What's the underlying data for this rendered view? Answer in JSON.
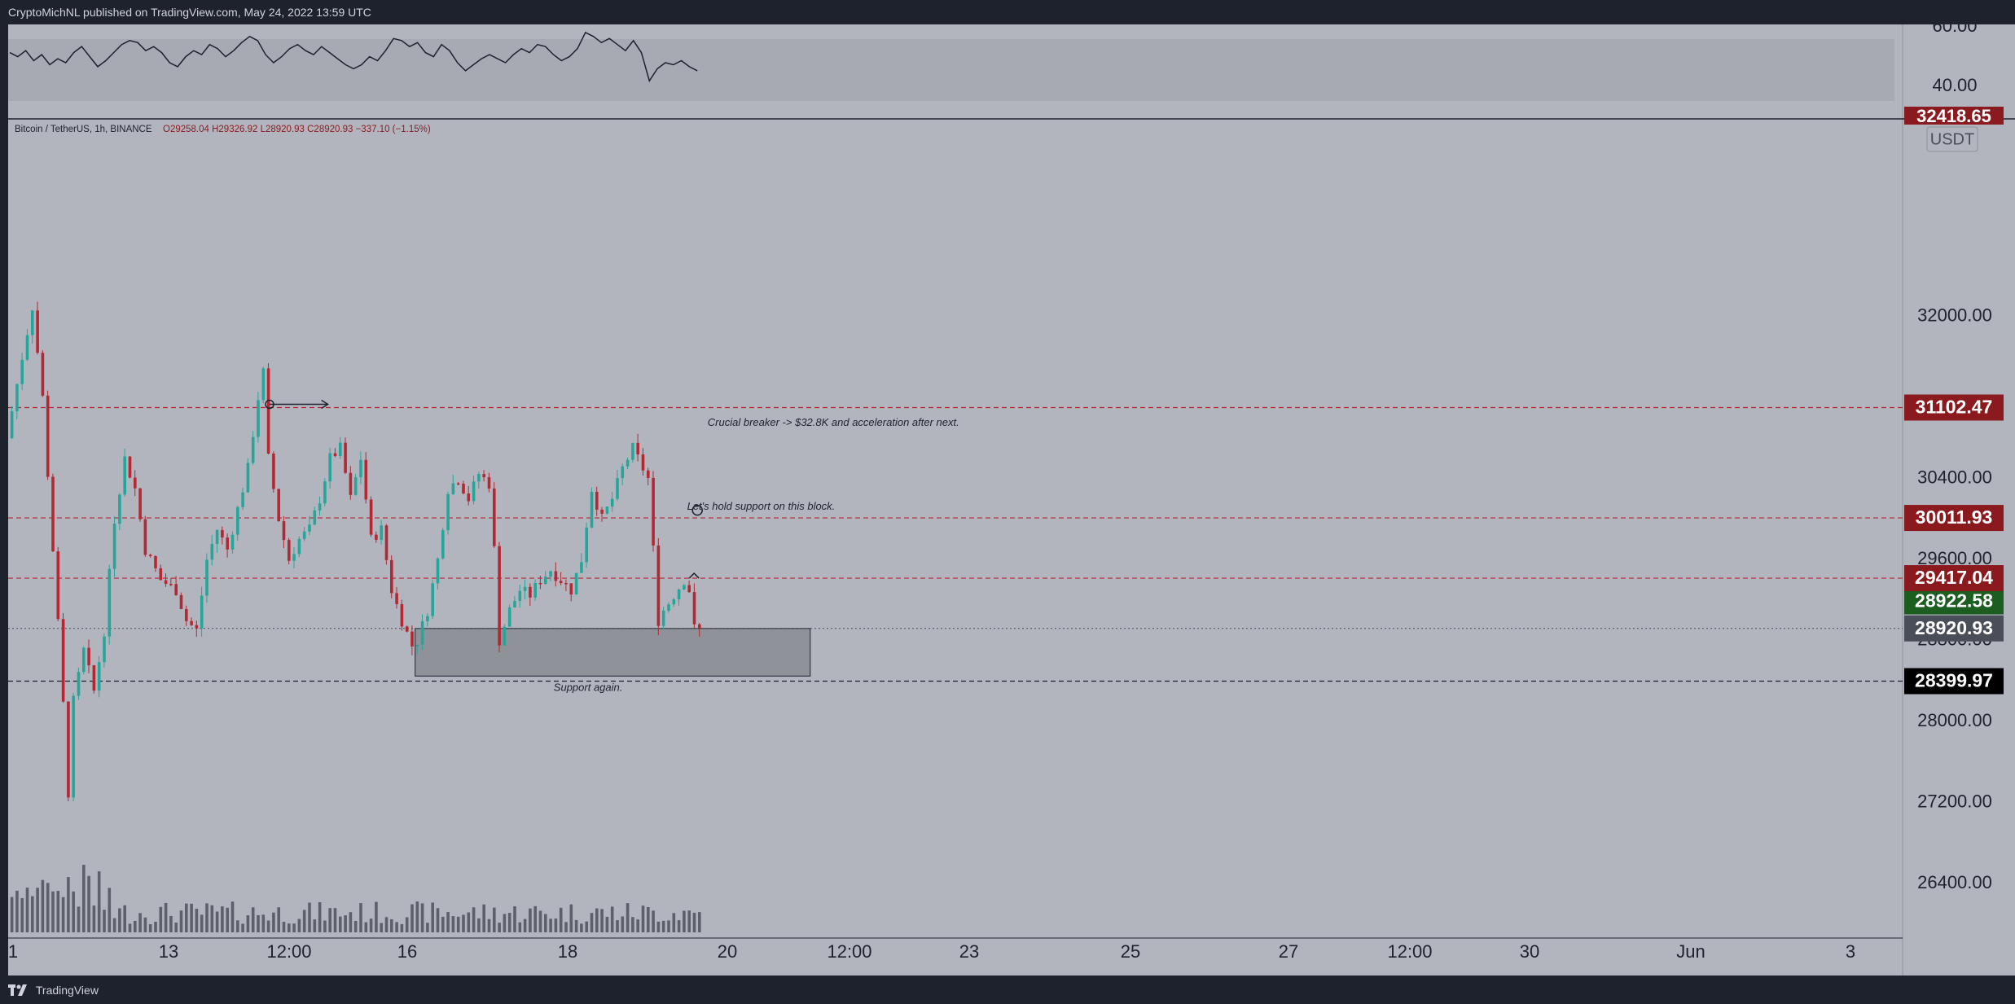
{
  "header": {
    "published_text": "CryptoMichNL published on TradingView.com, May 24, 2022 13:59 UTC"
  },
  "symbol": {
    "name": "Bitcoin / TetherUS, 1h, BINANCE",
    "ohlc": "O29258.04  H29326.92  L28920.93  C28920.93  −337.10 (−1.15%)"
  },
  "footer": {
    "brand": "TradingView"
  },
  "colors": {
    "background": "#b2b5be",
    "pane_bg": "#1e222d",
    "up": "#26a69a",
    "down": "#b22833",
    "line_red": "#b22833",
    "label_red": "#8b1a1f",
    "label_green": "#1b5e20",
    "label_gray": "#4a4e59",
    "label_black": "#000000",
    "zone_fill": "#8f9299",
    "text_dark": "#1e222d"
  },
  "chart_data": {
    "type": "candlestick",
    "symbol": "Bitcoin / TetherUS",
    "interval": "1h",
    "exchange": "BINANCE",
    "currency_label": "USDT",
    "last_ohlc": {
      "open": 29258.04,
      "high": 29326.92,
      "low": 28920.93,
      "close": 28920.93,
      "change": -337.1,
      "change_pct": -1.15
    },
    "x_ticks": [
      "1",
      "13",
      "12:00",
      "16",
      "18",
      "20",
      "12:00",
      "23",
      "25",
      "27",
      "12:00",
      "30",
      "Jun",
      "3"
    ],
    "y_ticks": [
      32000,
      30400,
      29600,
      28800,
      28000,
      27200,
      26400
    ],
    "y_tick_labels": [
      "32000.00",
      "30400.00",
      "29600.00",
      "28800.00",
      "28000.00",
      "27200.00",
      "26400.00"
    ],
    "ylim": [
      26200,
      33600
    ],
    "price_path": [
      [
        0,
        30800
      ],
      [
        3,
        31600
      ],
      [
        5,
        32100
      ],
      [
        7,
        31200
      ],
      [
        9,
        29700
      ],
      [
        10.5,
        28600
      ],
      [
        12,
        27300
      ],
      [
        13,
        28200
      ],
      [
        15,
        28700
      ],
      [
        17,
        28300
      ],
      [
        19,
        28900
      ],
      [
        21,
        30000
      ],
      [
        23,
        30600
      ],
      [
        25,
        30300
      ],
      [
        27,
        29700
      ],
      [
        30,
        29400
      ],
      [
        33,
        29300
      ],
      [
        35,
        29000
      ],
      [
        37,
        28900
      ],
      [
        39,
        29600
      ],
      [
        41,
        29900
      ],
      [
        43,
        29700
      ],
      [
        45,
        30100
      ],
      [
        47,
        30500
      ],
      [
        49,
        31200
      ],
      [
        50,
        31450
      ],
      [
        51,
        30600
      ],
      [
        53,
        30000
      ],
      [
        55,
        29600
      ],
      [
        57,
        29800
      ],
      [
        59,
        29900
      ],
      [
        61,
        30200
      ],
      [
        63,
        30600
      ],
      [
        65,
        30700
      ],
      [
        67,
        30200
      ],
      [
        69,
        30600
      ],
      [
        71,
        29800
      ],
      [
        73,
        29900
      ],
      [
        75,
        29300
      ],
      [
        77,
        29000
      ],
      [
        79,
        28750
      ],
      [
        80,
        28800
      ],
      [
        82,
        29100
      ],
      [
        84,
        29600
      ],
      [
        86,
        30300
      ],
      [
        88,
        30400
      ],
      [
        90,
        30200
      ],
      [
        92,
        30450
      ],
      [
        94,
        30350
      ],
      [
        95,
        29700
      ],
      [
        96,
        28800
      ],
      [
        98,
        29100
      ],
      [
        100,
        29300
      ],
      [
        102,
        29250
      ],
      [
        104,
        29400
      ],
      [
        106,
        29500
      ],
      [
        108,
        29400
      ],
      [
        110,
        29300
      ],
      [
        112,
        29600
      ],
      [
        114,
        30300
      ],
      [
        116,
        30000
      ],
      [
        118,
        30200
      ],
      [
        120,
        30500
      ],
      [
        122,
        30700
      ],
      [
        124,
        30500
      ],
      [
        125,
        30400
      ],
      [
        126,
        29700
      ],
      [
        127,
        29000
      ],
      [
        128,
        29100
      ],
      [
        130,
        29250
      ],
      [
        132,
        29400
      ],
      [
        133,
        29300
      ],
      [
        134,
        28920
      ]
    ],
    "rsi_pane": {
      "tick_labels": [
        "60.00",
        "40.00"
      ],
      "ylim": [
        28,
        66
      ],
      "values": [
        52,
        50,
        53,
        48,
        51,
        46,
        49,
        47,
        52,
        55,
        50,
        45,
        48,
        52,
        56,
        58,
        57,
        53,
        55,
        52,
        47,
        45,
        50,
        53,
        51,
        56,
        54,
        50,
        53,
        57,
        60,
        58,
        51,
        47,
        50,
        54,
        56,
        53,
        51,
        55,
        52,
        49,
        46,
        44,
        46,
        50,
        48,
        53,
        59,
        58,
        55,
        57,
        52,
        50,
        56,
        53,
        47,
        43,
        46,
        49,
        51,
        49,
        47,
        51,
        54,
        52,
        56,
        55,
        51,
        48,
        50,
        54,
        62,
        60,
        57,
        59,
        56,
        53,
        58,
        52,
        38,
        44,
        47,
        46,
        48,
        45,
        43
      ]
    },
    "horizontal_levels": [
      {
        "price": 31102.47,
        "label": "31102.47",
        "style": "red-dashed"
      },
      {
        "price": 30011.93,
        "label": "30011.93",
        "style": "red-dashed"
      },
      {
        "price": 29417.04,
        "label": "29417.04",
        "style": "red-dashed"
      },
      {
        "price": 28399.97,
        "label": "28399.97",
        "style": "black-dashed"
      }
    ],
    "price_labels": [
      {
        "price": 28922.58,
        "label": "28922.58",
        "kind": "green"
      },
      {
        "price": 28920.93,
        "label": "28920.93",
        "kind": "gray"
      },
      {
        "price": 31102.47,
        "label": "31102.47",
        "kind": "red"
      },
      {
        "price": 30011.93,
        "label": "30011.93",
        "kind": "red"
      },
      {
        "price": 29417.04,
        "label": "29417.04",
        "kind": "red"
      },
      {
        "price": 28399.97,
        "label": "28399.97",
        "kind": "black"
      }
    ],
    "support_zone": {
      "from_bar": 79,
      "to_bar": 156,
      "price_low": 28450,
      "price_high": 28920
    },
    "annotations": [
      {
        "text": "Crucial breaker -> $32.8K and acceleration after next.",
        "bar": 136,
        "price": 30950
      },
      {
        "text": "Let's hold support on this block.",
        "bar": 132,
        "price": 30120
      },
      {
        "text": "Support again.",
        "bar": 106,
        "price": 28330
      }
    ],
    "top_cut_label": "32418.65",
    "grid": false,
    "legend": "none"
  }
}
